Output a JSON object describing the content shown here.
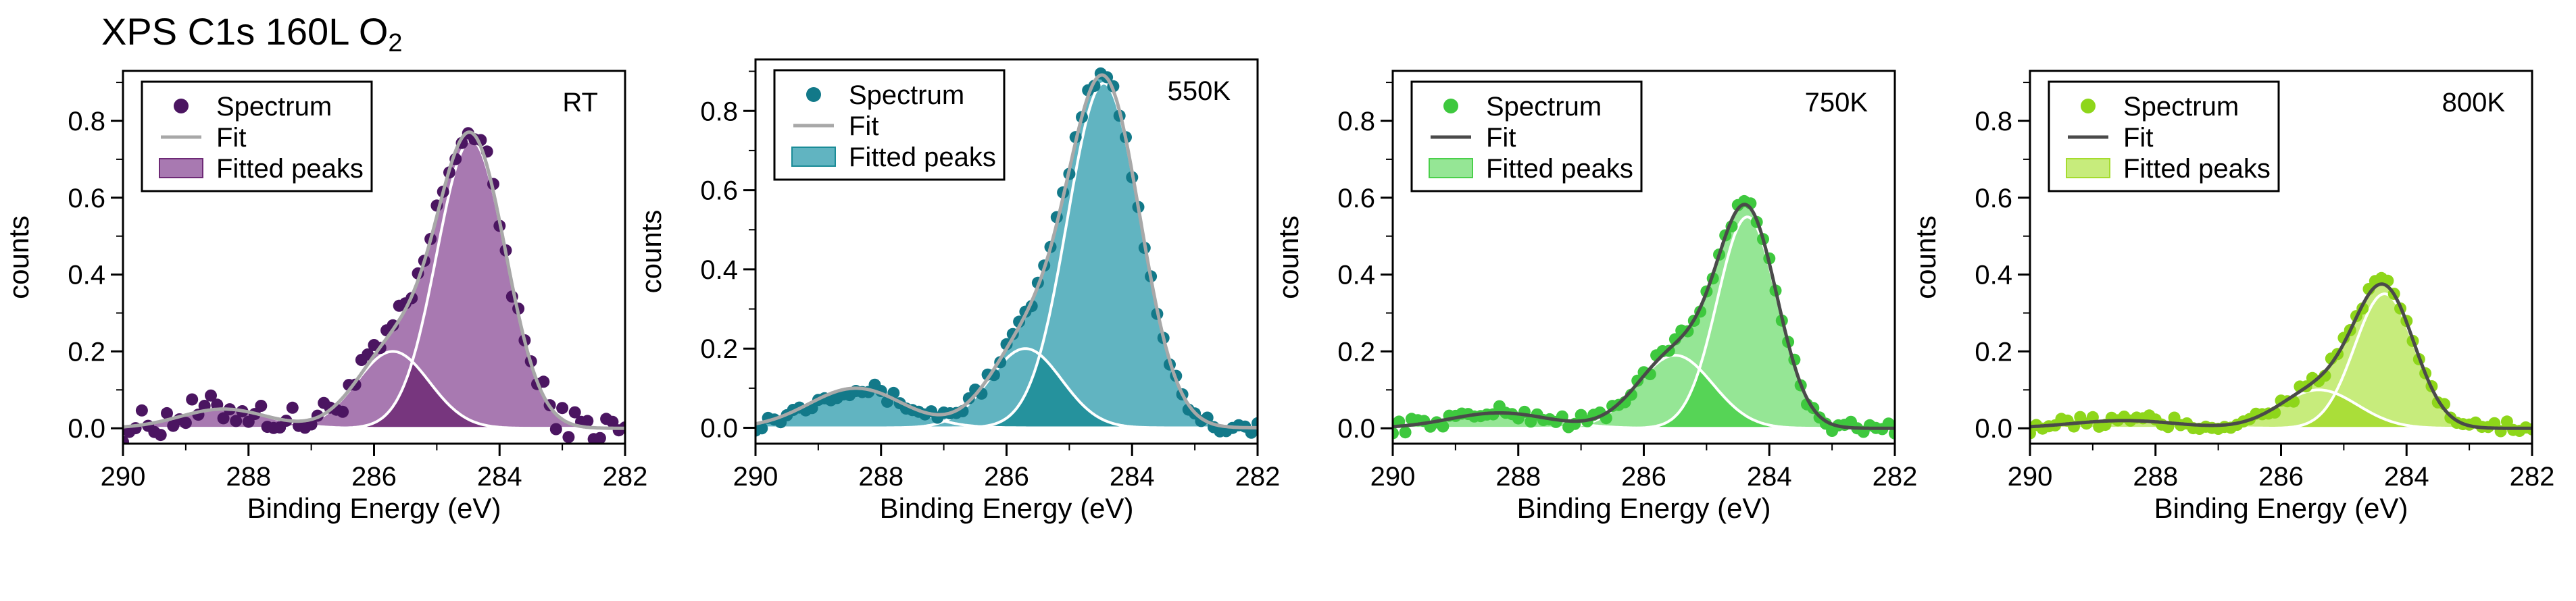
{
  "figure": {
    "title_main": "XPS C1s 160L O",
    "title_sub": "2"
  },
  "chart_data": [
    {
      "type": "area",
      "title": "RT",
      "xlabel": "Binding Energy (eV)",
      "ylabel": "counts",
      "xlim": [
        290,
        282
      ],
      "ylim": [
        -0.04,
        0.93
      ],
      "xticks": [
        290,
        288,
        286,
        284,
        282
      ],
      "yticks": [
        0.0,
        0.2,
        0.4,
        0.6,
        0.8
      ],
      "legend": {
        "position": "top-left",
        "entries": [
          "Spectrum",
          "Fit",
          "Fitted peaks"
        ]
      },
      "colors": {
        "points": "#4b1561",
        "fill_light": "#a879b1",
        "fill_dark": "#6e2a76",
        "fit": "#a8a8a8"
      },
      "noise": 0.018,
      "series": [
        {
          "name": "Fitted peaks",
          "component": "main",
          "center": 284.45,
          "amplitude": 0.75,
          "sigma": 0.55
        },
        {
          "name": "Fitted peaks",
          "component": "shoulder",
          "center": 285.7,
          "amplitude": 0.2,
          "sigma": 0.58
        },
        {
          "name": "Fitted peaks",
          "component": "satellite",
          "center": 288.4,
          "amplitude": 0.05,
          "sigma": 0.7
        }
      ]
    },
    {
      "type": "area",
      "title": "550K",
      "xlabel": "Binding Energy (eV)",
      "ylabel": "counts",
      "xlim": [
        290,
        282
      ],
      "ylim": [
        -0.04,
        0.93
      ],
      "xticks": [
        290,
        288,
        286,
        284,
        282
      ],
      "yticks": [
        0.0,
        0.2,
        0.4,
        0.6,
        0.8
      ],
      "legend": {
        "position": "top-left",
        "entries": [
          "Spectrum",
          "Fit",
          "Fitted peaks"
        ]
      },
      "colors": {
        "points": "#127989",
        "fill_light": "#61b4c1",
        "fill_dark": "#1b8c97",
        "fit": "#a8a8a8"
      },
      "noise": 0.008,
      "series": [
        {
          "name": "Fitted peaks",
          "component": "main",
          "center": 284.45,
          "amplitude": 0.87,
          "sigma": 0.58
        },
        {
          "name": "Fitted peaks",
          "component": "shoulder",
          "center": 285.7,
          "amplitude": 0.2,
          "sigma": 0.58
        },
        {
          "name": "Fitted peaks",
          "component": "satellite",
          "center": 288.4,
          "amplitude": 0.1,
          "sigma": 0.75
        }
      ]
    },
    {
      "type": "area",
      "title": "750K",
      "xlabel": "Binding Energy (eV)",
      "ylabel": "counts",
      "xlim": [
        290,
        282
      ],
      "ylim": [
        -0.04,
        0.93
      ],
      "xticks": [
        290,
        288,
        286,
        284,
        282
      ],
      "yticks": [
        0.0,
        0.2,
        0.4,
        0.6,
        0.8
      ],
      "legend": {
        "position": "top-left",
        "entries": [
          "Spectrum",
          "Fit",
          "Fitted peaks"
        ]
      },
      "colors": {
        "points": "#3ec83e",
        "fill_light": "#95e695",
        "fill_dark": "#4bd04b",
        "fit": "#4a4a4a"
      },
      "noise": 0.008,
      "series": [
        {
          "name": "Fitted peaks",
          "component": "main",
          "center": 284.35,
          "amplitude": 0.55,
          "sigma": 0.48
        },
        {
          "name": "Fitted peaks",
          "component": "shoulder",
          "center": 285.5,
          "amplitude": 0.19,
          "sigma": 0.6
        },
        {
          "name": "Fitted peaks",
          "component": "satellite",
          "center": 288.3,
          "amplitude": 0.04,
          "sigma": 0.8
        }
      ]
    },
    {
      "type": "area",
      "title": "800K",
      "xlabel": "Binding Energy (eV)",
      "ylabel": "counts",
      "xlim": [
        290,
        282
      ],
      "ylim": [
        -0.04,
        0.93
      ],
      "xticks": [
        290,
        288,
        286,
        284,
        282
      ],
      "yticks": [
        0.0,
        0.2,
        0.4,
        0.6,
        0.8
      ],
      "legend": {
        "position": "top-left",
        "entries": [
          "Spectrum",
          "Fit",
          "Fitted peaks"
        ]
      },
      "colors": {
        "points": "#8ed61a",
        "fill_light": "#c7ec7c",
        "fill_dark": "#a5dc2e",
        "fit": "#4a4a4a"
      },
      "noise": 0.008,
      "series": [
        {
          "name": "Fitted peaks",
          "component": "main",
          "center": 284.35,
          "amplitude": 0.35,
          "sigma": 0.48
        },
        {
          "name": "Fitted peaks",
          "component": "shoulder",
          "center": 285.4,
          "amplitude": 0.1,
          "sigma": 0.62
        },
        {
          "name": "Fitted peaks",
          "component": "satellite",
          "center": 288.5,
          "amplitude": 0.02,
          "sigma": 0.85
        }
      ]
    }
  ]
}
